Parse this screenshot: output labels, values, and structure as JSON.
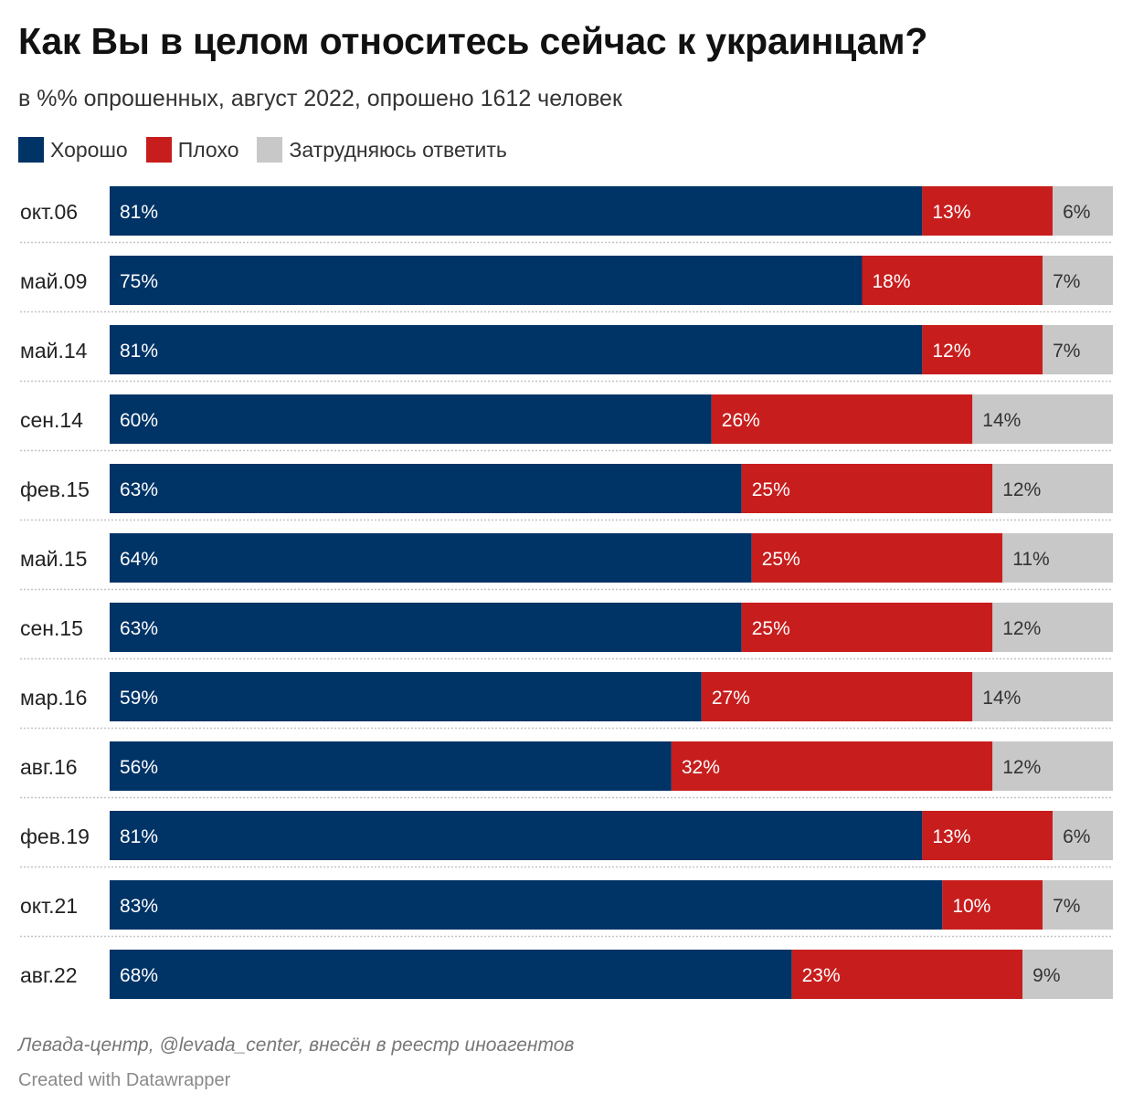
{
  "title": "Как Вы в целом относитесь сейчас к украинцам?",
  "subtitle": "в %% опрошенных, август 2022, опрошено 1612 человек",
  "legend": [
    {
      "label": "Хорошо",
      "color": "#003366"
    },
    {
      "label": "Плохо",
      "color": "#c71e1d"
    },
    {
      "label": "Затрудняюсь ответить",
      "color": "#c8c8c8"
    }
  ],
  "chart_data": {
    "type": "bar",
    "orientation": "horizontal",
    "stacked": true,
    "normalized": true,
    "title": "Как Вы в целом относитесь сейчас к украинцам?",
    "categories": [
      "окт.06",
      "май.09",
      "май.14",
      "сен.14",
      "фев.15",
      "май.15",
      "сен.15",
      "мар.16",
      "авг.16",
      "фев.19",
      "окт.21",
      "авг.22"
    ],
    "value_suffix": "%",
    "series": [
      {
        "name": "Хорошо",
        "color": "#003366",
        "label_color": "#ffffff",
        "values": [
          81,
          75,
          81,
          60,
          63,
          64,
          63,
          59,
          56,
          81,
          83,
          68
        ]
      },
      {
        "name": "Плохо",
        "color": "#c71e1d",
        "label_color": "#ffffff",
        "values": [
          13,
          18,
          12,
          26,
          25,
          25,
          25,
          27,
          32,
          13,
          10,
          23
        ]
      },
      {
        "name": "Затрудняюсь ответить",
        "color": "#c8c8c8",
        "label_color": "#333333",
        "values": [
          6,
          7,
          7,
          14,
          12,
          11,
          12,
          14,
          12,
          6,
          7,
          9
        ]
      }
    ],
    "xlim": [
      0,
      100
    ]
  },
  "footer": {
    "source": "Левада-центр, @levada_center, внесён в реестр иноагентов",
    "credit": "Created with Datawrapper"
  }
}
